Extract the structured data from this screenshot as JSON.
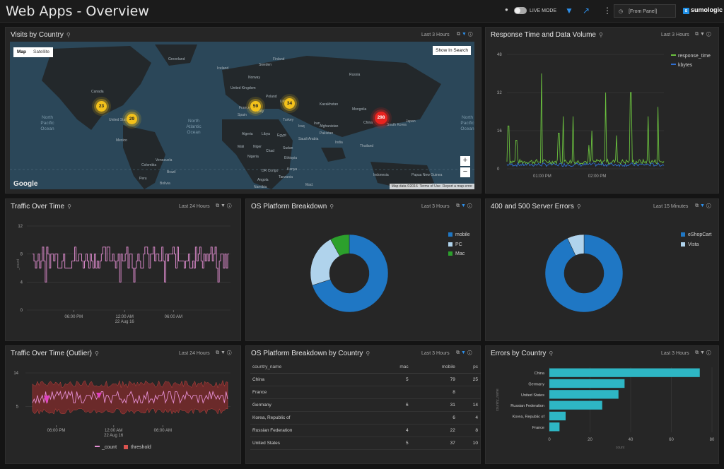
{
  "header": {
    "title": "Web Apps - Overview",
    "live_mode": "LIVE MODE",
    "from_panel": "[From Panel]",
    "logo": "sumologic"
  },
  "panels": {
    "visits": {
      "title": "Visits by Country",
      "range": "Last 3 Hours",
      "map_tab": "Map",
      "satellite_tab": "Satellite",
      "show_in_search": "Show In Search",
      "google": "Google",
      "footer": [
        "Map data ©2016",
        "Terms of Use",
        "Report a map error"
      ],
      "zoom_in": "+",
      "zoom_out": "−",
      "markers": [
        {
          "label": "23"
        },
        {
          "label": "29"
        },
        {
          "label": "59"
        },
        {
          "label": "34"
        },
        {
          "label": "298",
          "color": "#e8231f"
        }
      ],
      "places": [
        "Canada",
        "United States",
        "Mexico",
        "Colombia",
        "Peru",
        "Brazil",
        "Bolivia",
        "Venezuela",
        "Greenland",
        "Iceland",
        "Norway",
        "Sweden",
        "Finland",
        "United Kingdom",
        "France",
        "Spain",
        "Italy",
        "Poland",
        "Ukraine",
        "Russia",
        "Kazakhstan",
        "Mongolia",
        "China",
        "Japan",
        "South Korea",
        "Turkey",
        "Iran",
        "Iraq",
        "Afghanistan",
        "Pakistan",
        "India",
        "Thailand",
        "Indonesia",
        "Papua New Guinea",
        "Algeria",
        "Libya",
        "Egypt",
        "Saudi Arabia",
        "Mali",
        "Niger",
        "Chad",
        "Sudan",
        "Nigeria",
        "Ethiopia",
        "Kenya",
        "DR Congo",
        "Tanzania",
        "Angola",
        "Namibia",
        "Mad."
      ],
      "oceans": [
        "North Pacific Ocean",
        "North Atlantic Ocean",
        "North Pacific Ocean"
      ]
    },
    "response": {
      "title": "Response Time and Data Volume",
      "range": "Last 3 Hours",
      "legend": [
        {
          "name": "response_time",
          "color": "#6bc23f"
        },
        {
          "name": "kbytes",
          "color": "#2f6fd1"
        }
      ]
    },
    "traffic": {
      "title": "Traffic Over Time",
      "range": "Last 24 Hours"
    },
    "os": {
      "title": "OS Platform Breakdown",
      "range": "Last 3 Hours",
      "legend": [
        {
          "name": "mobile",
          "color": "#1f77c4"
        },
        {
          "name": "PC",
          "color": "#b0d3ec"
        },
        {
          "name": "Mac",
          "color": "#2ca02c"
        }
      ]
    },
    "errors400": {
      "title": "400 and 500 Server Errors",
      "range": "Last 15 Minutes",
      "legend": [
        {
          "name": "eShopCart",
          "color": "#1f77c4"
        },
        {
          "name": "Vista",
          "color": "#b0d3ec"
        }
      ]
    },
    "outlier": {
      "title": "Traffic Over Time (Outlier)",
      "range": "Last 24 Hours",
      "legend": [
        {
          "name": "_count",
          "color": "#e58fd4"
        },
        {
          "name": "threshold",
          "color": "#d9534f"
        }
      ]
    },
    "oscountry": {
      "title": "OS Platform Breakdown by Country",
      "range": "Last 3 Hours",
      "columns": [
        "country_name",
        "mac",
        "mobile",
        "pc"
      ],
      "rows": [
        [
          "China",
          "5",
          "79",
          "25"
        ],
        [
          "France",
          "",
          "8",
          ""
        ],
        [
          "Germany",
          "6",
          "31",
          "14"
        ],
        [
          "Korea, Republic of",
          "",
          "6",
          "4"
        ],
        [
          "Russian Federation",
          "4",
          "22",
          "8"
        ],
        [
          "United States",
          "5",
          "37",
          "10"
        ]
      ]
    },
    "errcountry": {
      "title": "Errors by Country",
      "range": "Last 3 Hours"
    }
  },
  "chart_data": [
    {
      "id": "response_time",
      "type": "line",
      "ylim": [
        0,
        48
      ],
      "yticks": [
        0,
        16,
        32,
        48
      ],
      "xticks": [
        "01:00 PM",
        "02:00 PM"
      ],
      "grid": true,
      "legend_position": "top-right",
      "series": [
        {
          "name": "response_time",
          "color": "#6bc23f",
          "spikes": [
            [
              0.01,
              18
            ],
            [
              0.06,
              12
            ],
            [
              0.22,
              40
            ],
            [
              0.33,
              15
            ],
            [
              0.36,
              22
            ],
            [
              0.42,
              22
            ],
            [
              0.52,
              10
            ],
            [
              0.54,
              16
            ],
            [
              0.63,
              32
            ],
            [
              0.7,
              14
            ],
            [
              0.79,
              32
            ],
            [
              0.9,
              22
            ],
            [
              0.96,
              26
            ]
          ],
          "baseline": 2
        },
        {
          "name": "kbytes",
          "color": "#2f6fd1",
          "baseline": 1
        }
      ]
    },
    {
      "id": "traffic",
      "type": "line",
      "ylim": [
        0,
        12
      ],
      "yticks": [
        0,
        4,
        8,
        12
      ],
      "ylabel": "_count",
      "xticks": [
        "06:00 PM",
        "12:00 AM\n22 Aug 16",
        "06:00 AM"
      ],
      "grid": true,
      "series": [
        {
          "name": "_count",
          "color": "#e58fd4",
          "low": 6,
          "high": 9
        }
      ]
    },
    {
      "id": "os_donut",
      "type": "pie",
      "series": [
        {
          "name": "mobile",
          "value": 70
        },
        {
          "name": "PC",
          "value": 22
        },
        {
          "name": "Mac",
          "value": 8
        }
      ],
      "colors": [
        "#1f77c4",
        "#b0d3ec",
        "#2ca02c"
      ]
    },
    {
      "id": "errors_donut",
      "type": "pie",
      "series": [
        {
          "name": "eShopCart",
          "value": 93
        },
        {
          "name": "Vista",
          "value": 7
        }
      ],
      "colors": [
        "#1f77c4",
        "#b0d3ec"
      ]
    },
    {
      "id": "outlier",
      "type": "line",
      "ylim": [
        0,
        14
      ],
      "yticks": [
        5,
        14
      ],
      "xticks": [
        "06:00 PM",
        "12:00 AM\n22 Aug 16",
        "06:00 AM"
      ],
      "grid": true,
      "legend_position": "bottom",
      "series": [
        {
          "name": "_count",
          "color": "#e58fd4",
          "low": 6,
          "high": 9
        },
        {
          "name": "threshold",
          "color": "#d9534f",
          "low": 3,
          "high": 12
        }
      ]
    },
    {
      "id": "errors_by_country",
      "type": "bar",
      "orientation": "horizontal",
      "categories": [
        "China",
        "Germany",
        "United States",
        "Russian Federation",
        "Korea, Republic of",
        "France"
      ],
      "values": [
        74,
        37,
        34,
        26,
        8,
        5
      ],
      "xlim": [
        0,
        80
      ],
      "xticks": [
        0,
        20,
        40,
        60,
        80
      ],
      "xlabel": "count",
      "ylabel": "country_name",
      "color": "#2eb6c4"
    }
  ]
}
